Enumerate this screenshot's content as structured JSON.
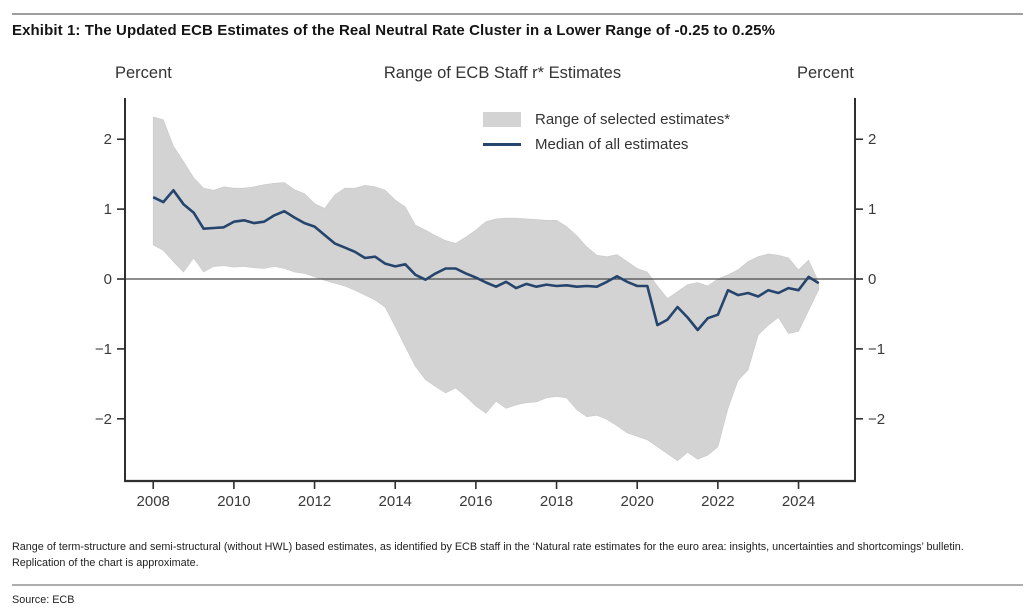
{
  "page": {
    "exhibit_title": "Exhibit 1: The Updated ECB Estimates of the Real Neutral Rate Cluster in a Lower Range of -0.25 to 0.25%",
    "footnote_line1": "Range of term-structure and semi-structural (without HWL) based estimates, as identified by ECB staff in the ‘Natural rate estimates for the euro area: insights, uncertainties and shortcomings’ bulletin.",
    "footnote_line2": "Replication of the chart is approximate.",
    "source": "Source: ECB"
  },
  "chart_data": {
    "type": "area",
    "title": "Range of ECB Staff r* Estimates",
    "left_axis_label": "Percent",
    "right_axis_label": "Percent",
    "x_unit": "year (quarterly)",
    "xlim": [
      2007.3,
      2025.4
    ],
    "ylim": [
      -2.89,
      2.59
    ],
    "x_ticks": [
      2008,
      2010,
      2012,
      2014,
      2016,
      2018,
      2020,
      2022,
      2024
    ],
    "y_ticks": [
      2,
      1,
      0,
      -1,
      -2
    ],
    "zero_line": true,
    "grid": false,
    "legend_position": "inside-top-right-of-center",
    "axis_color": "#2f2f2f",
    "zero_line_color": "#4a4a4a",
    "x": [
      2008,
      2008.25,
      2008.5,
      2008.75,
      2009,
      2009.25,
      2009.5,
      2009.75,
      2010,
      2010.25,
      2010.5,
      2010.75,
      2011,
      2011.25,
      2011.5,
      2011.75,
      2012,
      2012.25,
      2012.5,
      2012.75,
      2013,
      2013.25,
      2013.5,
      2013.75,
      2014,
      2014.25,
      2014.5,
      2014.75,
      2015,
      2015.25,
      2015.5,
      2015.75,
      2016,
      2016.25,
      2016.5,
      2016.75,
      2017,
      2017.25,
      2017.5,
      2017.75,
      2018,
      2018.25,
      2018.5,
      2018.75,
      2019,
      2019.25,
      2019.5,
      2019.75,
      2020,
      2020.25,
      2020.5,
      2020.75,
      2021,
      2021.25,
      2021.5,
      2021.75,
      2022,
      2022.25,
      2022.5,
      2022.75,
      2023,
      2023.25,
      2023.5,
      2023.75,
      2024,
      2024.25,
      2024.5
    ],
    "series": [
      {
        "name": "Range of selected estimates*",
        "type": "band",
        "color": "#d3d3d3",
        "upper": [
          2.32,
          2.28,
          1.9,
          1.68,
          1.45,
          1.3,
          1.27,
          1.32,
          1.3,
          1.3,
          1.32,
          1.35,
          1.37,
          1.38,
          1.28,
          1.22,
          1.08,
          1.01,
          1.2,
          1.3,
          1.3,
          1.34,
          1.32,
          1.27,
          1.13,
          1.03,
          0.77,
          0.7,
          0.62,
          0.55,
          0.51,
          0.6,
          0.7,
          0.82,
          0.86,
          0.87,
          0.87,
          0.86,
          0.85,
          0.84,
          0.84,
          0.75,
          0.62,
          0.46,
          0.34,
          0.32,
          0.35,
          0.25,
          0.15,
          0.1,
          -0.1,
          -0.28,
          -0.18,
          -0.08,
          -0.05,
          -0.1,
          0.0,
          0.06,
          0.13,
          0.25,
          0.32,
          0.36,
          0.34,
          0.3,
          0.13,
          0.27,
          -0.05
        ],
        "lower": [
          0.49,
          0.41,
          0.25,
          0.1,
          0.3,
          0.1,
          0.18,
          0.19,
          0.17,
          0.18,
          0.16,
          0.15,
          0.18,
          0.15,
          0.1,
          0.08,
          0.03,
          -0.02,
          -0.06,
          -0.1,
          -0.16,
          -0.23,
          -0.3,
          -0.4,
          -0.68,
          -0.97,
          -1.25,
          -1.44,
          -1.54,
          -1.63,
          -1.56,
          -1.68,
          -1.82,
          -1.92,
          -1.75,
          -1.85,
          -1.8,
          -1.77,
          -1.76,
          -1.7,
          -1.68,
          -1.7,
          -1.87,
          -1.97,
          -1.95,
          -2.01,
          -2.1,
          -2.2,
          -2.25,
          -2.3,
          -2.4,
          -2.5,
          -2.6,
          -2.48,
          -2.58,
          -2.52,
          -2.4,
          -1.85,
          -1.45,
          -1.3,
          -0.8,
          -0.66,
          -0.55,
          -0.78,
          -0.75,
          -0.45,
          -0.15
        ]
      },
      {
        "name": "Median of all estimates",
        "type": "line",
        "color": "#26456d",
        "values": [
          1.17,
          1.1,
          1.27,
          1.07,
          0.95,
          0.72,
          0.73,
          0.74,
          0.82,
          0.84,
          0.8,
          0.82,
          0.91,
          0.97,
          0.88,
          0.8,
          0.75,
          0.63,
          0.51,
          0.45,
          0.39,
          0.3,
          0.32,
          0.22,
          0.18,
          0.21,
          0.06,
          -0.01,
          0.08,
          0.15,
          0.15,
          0.08,
          0.02,
          -0.05,
          -0.11,
          -0.04,
          -0.13,
          -0.07,
          -0.11,
          -0.08,
          -0.1,
          -0.09,
          -0.11,
          -0.1,
          -0.11,
          -0.04,
          0.04,
          -0.04,
          -0.1,
          -0.1,
          -0.66,
          -0.58,
          -0.4,
          -0.55,
          -0.73,
          -0.56,
          -0.51,
          -0.16,
          -0.23,
          -0.2,
          -0.25,
          -0.16,
          -0.2,
          -0.13,
          -0.16,
          0.03,
          -0.06
        ]
      }
    ]
  }
}
